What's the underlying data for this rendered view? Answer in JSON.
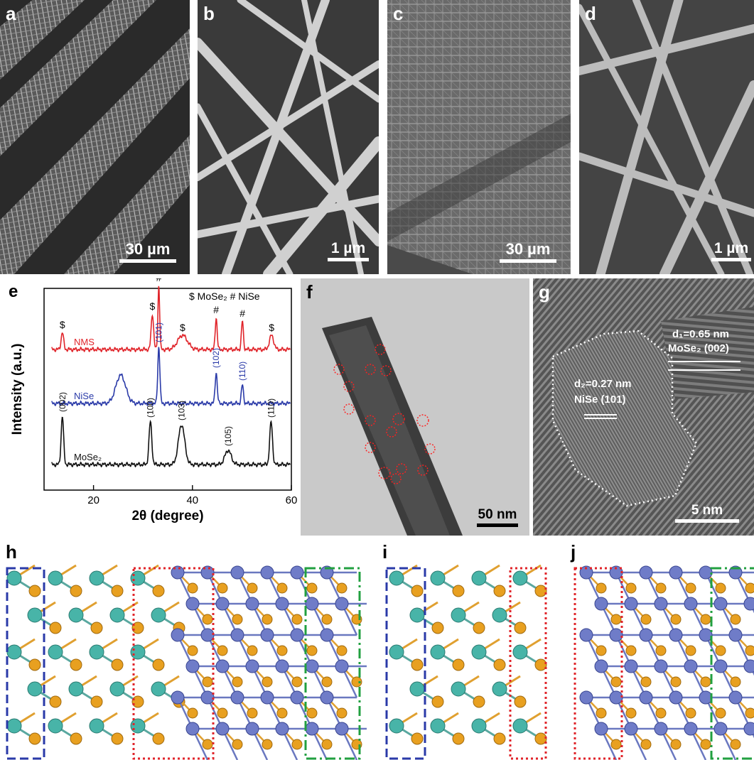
{
  "panels": {
    "a": {
      "letter": "a",
      "scale": "30 µm"
    },
    "b": {
      "letter": "b",
      "scale": "1 µm"
    },
    "c": {
      "letter": "c",
      "scale": "30 µm"
    },
    "d": {
      "letter": "d",
      "scale": "1 µm"
    },
    "f": {
      "letter": "f",
      "scale": "50 nm"
    },
    "g": {
      "letter": "g",
      "scale": "5 nm",
      "d1_label": "d₁=0.65 nm",
      "d1_phase": "MoSe₂ (002)",
      "d2_label": "d₂=0.27 nm",
      "d2_phase": "NiSe (101)"
    },
    "h": {
      "letter": "h"
    },
    "i": {
      "letter": "i"
    },
    "j": {
      "letter": "j"
    }
  },
  "chart_data": {
    "type": "line",
    "panel_letter": "e",
    "legend_text": "$ MoSe₂  # NiSe",
    "xlabel": "2θ (degree)",
    "ylabel": "Intensity (a.u.)",
    "xlim": [
      10,
      60
    ],
    "xticks": [
      20,
      40,
      60
    ],
    "y_axis_ticks_shown": false,
    "series": [
      {
        "name": "NMS",
        "color": "#e0242a",
        "peaks": [
          {
            "x": 13.7,
            "label": "$"
          },
          {
            "x": 31.9,
            "label": "$"
          },
          {
            "x": 33.2,
            "label": "#"
          },
          {
            "x": 38.0,
            "label": "$"
          },
          {
            "x": 44.8,
            "label": "#"
          },
          {
            "x": 50.1,
            "label": "#"
          },
          {
            "x": 56.0,
            "label": "$"
          }
        ]
      },
      {
        "name": "NiSe",
        "color": "#2a3aa8",
        "peaks": [
          {
            "x": 25.5,
            "label": ""
          },
          {
            "x": 33.2,
            "label": "(101)"
          },
          {
            "x": 44.8,
            "label": "(102)"
          },
          {
            "x": 50.1,
            "label": "(110)"
          }
        ]
      },
      {
        "name": "MoSe₂",
        "color": "#111111",
        "peaks": [
          {
            "x": 13.7,
            "label": "(002)"
          },
          {
            "x": 31.5,
            "label": "(100)"
          },
          {
            "x": 37.8,
            "label": "(103)"
          },
          {
            "x": 47.2,
            "label": "(105)"
          },
          {
            "x": 55.9,
            "label": "(110)"
          }
        ]
      }
    ]
  }
}
